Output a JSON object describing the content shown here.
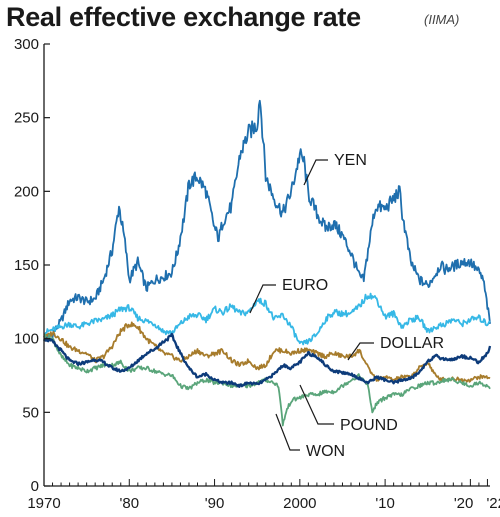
{
  "title": "Real effective exchange rate",
  "source": "(IIMA)",
  "chart_data": {
    "type": "line",
    "title": "Real effective exchange rate",
    "note": "(IIMA)",
    "xlabel": "",
    "ylabel": "",
    "xlim": [
      1970,
      2022.3
    ],
    "ylim": [
      0,
      300
    ],
    "grid": false,
    "legend": "inline labels",
    "y_ticks": [
      0,
      50,
      100,
      150,
      200,
      250,
      300
    ],
    "y_tick_labels": [
      "0",
      "50",
      "100",
      "150",
      "200",
      "250",
      "300"
    ],
    "x_ticks": [
      1970,
      1980,
      1990,
      2000,
      2010,
      2020,
      2022
    ],
    "x_tick_labels": [
      "1970",
      "'80",
      "'90",
      "2000",
      "'10",
      "'20",
      "'22"
    ],
    "series": [
      {
        "name": "YEN",
        "color": "#1f6fae",
        "x": [
          1970,
          1971,
          1972,
          1973,
          1974,
          1975,
          1976,
          1977,
          1978,
          1978.8,
          1979.5,
          1980,
          1981,
          1982,
          1983,
          1984,
          1985,
          1985.7,
          1986.5,
          1987,
          1988,
          1989,
          1990,
          1990.5,
          1991,
          1992,
          1993,
          1994,
          1995,
          1995.3,
          1995.7,
          1996,
          1997,
          1998,
          1999,
          2000,
          2000.5,
          2001,
          2002,
          2003,
          2004,
          2005,
          2006,
          2007,
          2007.5,
          2008,
          2008.7,
          2009,
          2010,
          2011,
          2011.7,
          2012,
          2013,
          2014,
          2015,
          2016,
          2016.5,
          2017,
          2018,
          2019,
          2020,
          2021,
          2021.5,
          2022,
          2022.3
        ],
        "y": [
          100,
          103,
          112,
          126,
          128,
          125,
          127,
          140,
          160,
          190,
          165,
          140,
          152,
          134,
          140,
          142,
          145,
          160,
          185,
          205,
          210,
          200,
          175,
          168,
          180,
          190,
          225,
          240,
          245,
          265,
          235,
          210,
          195,
          185,
          200,
          225,
          220,
          198,
          185,
          175,
          178,
          170,
          158,
          142,
          140,
          160,
          185,
          190,
          188,
          195,
          200,
          185,
          152,
          140,
          136,
          145,
          150,
          147,
          149,
          152,
          152,
          145,
          140,
          122,
          110
        ]
      },
      {
        "name": "EURO",
        "color": "#36b8e6",
        "x": [
          1970,
          1971,
          1972,
          1973,
          1974,
          1975,
          1976,
          1977,
          1978,
          1979,
          1980,
          1981,
          1982,
          1983,
          1984,
          1985,
          1986,
          1987,
          1988,
          1989,
          1990,
          1991,
          1992,
          1993,
          1994,
          1995,
          1996,
          1997,
          1998,
          1999,
          2000,
          2001,
          2002,
          2003,
          2004,
          2005,
          2006,
          2007,
          2008,
          2009,
          2010,
          2011,
          2012,
          2013,
          2014,
          2015,
          2016,
          2017,
          2018,
          2019,
          2020,
          2021,
          2022,
          2022.3
        ],
        "y": [
          104,
          106,
          108,
          110,
          108,
          110,
          112,
          113,
          116,
          120,
          121,
          114,
          112,
          110,
          105,
          104,
          110,
          115,
          116,
          113,
          120,
          118,
          122,
          117,
          118,
          126,
          124,
          113,
          116,
          108,
          96,
          98,
          103,
          113,
          118,
          117,
          117,
          122,
          130,
          127,
          115,
          117,
          108,
          113,
          114,
          105,
          108,
          110,
          113,
          110,
          113,
          114,
          110,
          112
        ]
      },
      {
        "name": "DOLLAR",
        "color": "#0d3b7a",
        "x": [
          1970,
          1971,
          1972,
          1973,
          1974,
          1975,
          1976,
          1977,
          1978,
          1979,
          1980,
          1981,
          1982,
          1983,
          1984,
          1985,
          1986,
          1987,
          1988,
          1989,
          1990,
          1991,
          1992,
          1993,
          1994,
          1995,
          1996,
          1997,
          1998,
          1999,
          2000,
          2001,
          2002,
          2003,
          2004,
          2005,
          2006,
          2007,
          2008,
          2009,
          2010,
          2011,
          2012,
          2013,
          2014,
          2015,
          2016,
          2017,
          2018,
          2019,
          2020,
          2021,
          2022,
          2022.3
        ],
        "y": [
          100,
          98,
          92,
          85,
          83,
          84,
          86,
          84,
          80,
          78,
          80,
          85,
          90,
          93,
          98,
          102,
          90,
          80,
          74,
          76,
          72,
          70,
          70,
          68,
          70,
          69,
          72,
          76,
          82,
          80,
          84,
          90,
          88,
          82,
          78,
          77,
          76,
          73,
          70,
          74,
          72,
          70,
          72,
          73,
          77,
          85,
          88,
          86,
          86,
          88,
          87,
          84,
          90,
          95
        ]
      },
      {
        "name": "POUND",
        "color": "#a77c2c",
        "x": [
          1970,
          1971,
          1972,
          1973,
          1974,
          1975,
          1976,
          1977,
          1978,
          1979,
          1980,
          1981,
          1982,
          1983,
          1984,
          1985,
          1986,
          1987,
          1988,
          1989,
          1990,
          1991,
          1992,
          1993,
          1994,
          1995,
          1996,
          1997,
          1998,
          1999,
          2000,
          2001,
          2002,
          2003,
          2004,
          2005,
          2006,
          2007,
          2008,
          2009,
          2010,
          2011,
          2012,
          2013,
          2014,
          2015,
          2016,
          2017,
          2018,
          2019,
          2020,
          2021,
          2022,
          2022.3
        ],
        "y": [
          100,
          104,
          100,
          94,
          92,
          90,
          85,
          88,
          95,
          105,
          110,
          108,
          100,
          95,
          90,
          88,
          85,
          88,
          92,
          88,
          90,
          92,
          85,
          82,
          85,
          80,
          82,
          92,
          92,
          90,
          92,
          92,
          90,
          88,
          90,
          88,
          88,
          92,
          80,
          72,
          74,
          72,
          74,
          74,
          80,
          84,
          74,
          72,
          73,
          72,
          72,
          74,
          74,
          73
        ]
      },
      {
        "name": "WON",
        "color": "#5aa57a",
        "x": [
          1970,
          1971,
          1972,
          1973,
          1974,
          1975,
          1976,
          1977,
          1978,
          1979,
          1980,
          1981,
          1982,
          1983,
          1984,
          1985,
          1986,
          1987,
          1988,
          1989,
          1990,
          1991,
          1992,
          1993,
          1994,
          1995,
          1996,
          1997,
          1997.5,
          1998,
          1998.5,
          1999,
          2000,
          2001,
          2002,
          2003,
          2004,
          2005,
          2006,
          2007,
          2008,
          2008.5,
          2009,
          2010,
          2011,
          2012,
          2013,
          2014,
          2015,
          2016,
          2017,
          2018,
          2019,
          2020,
          2021,
          2022,
          2022.3
        ],
        "y": [
          102,
          100,
          88,
          82,
          80,
          78,
          80,
          82,
          82,
          84,
          78,
          80,
          80,
          78,
          76,
          75,
          68,
          66,
          70,
          72,
          70,
          70,
          68,
          68,
          68,
          70,
          72,
          70,
          68,
          42,
          52,
          58,
          60,
          62,
          62,
          64,
          64,
          68,
          72,
          75,
          68,
          50,
          56,
          60,
          62,
          62,
          66,
          68,
          70,
          70,
          72,
          72,
          70,
          68,
          70,
          68,
          66
        ]
      }
    ],
    "labels": {
      "yen": "YEN",
      "euro": "EURO",
      "dollar": "DOLLAR",
      "pound": "POUND",
      "won": "WON"
    }
  }
}
